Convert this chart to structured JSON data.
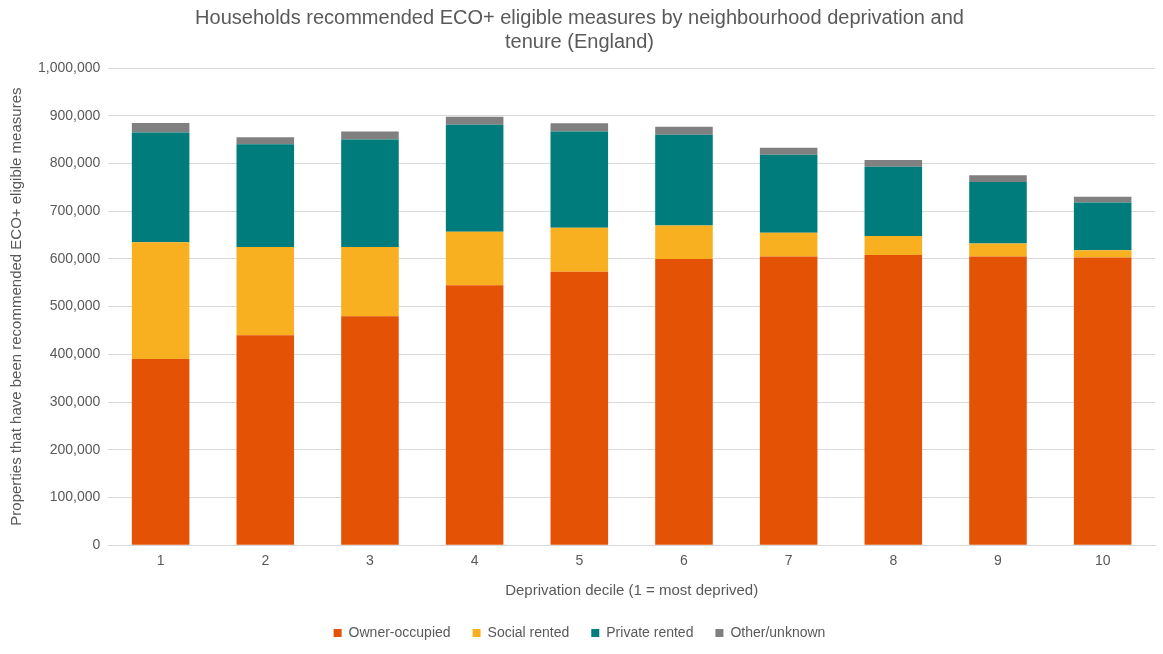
{
  "chart_data": {
    "type": "bar",
    "stacked": true,
    "title": "Households recommended ECO+ eligible measures by neighbourhood deprivation and tenure (England)",
    "xlabel": "Deprivation decile (1 = most deprived)",
    "ylabel": "Properties that have been recommended ECO+ eligible measures",
    "categories": [
      "1",
      "2",
      "3",
      "4",
      "5",
      "6",
      "7",
      "8",
      "9",
      "10"
    ],
    "series": [
      {
        "name": "Owner-occupied",
        "color": "#e35205",
        "values": [
          390000,
          440000,
          480000,
          545000,
          573000,
          600000,
          605000,
          608000,
          605000,
          603000
        ]
      },
      {
        "name": "Social rented",
        "color": "#f8b020",
        "values": [
          245000,
          185000,
          145000,
          112000,
          92000,
          70000,
          50000,
          40000,
          27000,
          15000
        ]
      },
      {
        "name": "Private rented",
        "color": "#007c7c",
        "values": [
          230000,
          215000,
          225000,
          224000,
          202000,
          190000,
          163000,
          145000,
          129000,
          100000
        ]
      },
      {
        "name": "Other/unknown",
        "color": "#808080",
        "values": [
          20000,
          15000,
          17000,
          17000,
          17000,
          17000,
          15000,
          14000,
          14000,
          12000
        ]
      }
    ],
    "ylim": [
      0,
      1000000
    ],
    "yticks": [
      {
        "value": 0,
        "label": "0"
      },
      {
        "value": 100000,
        "label": "100,000"
      },
      {
        "value": 200000,
        "label": "200,000"
      },
      {
        "value": 300000,
        "label": "300,000"
      },
      {
        "value": 400000,
        "label": "400,000"
      },
      {
        "value": 500000,
        "label": "500,000"
      },
      {
        "value": 600000,
        "label": "600,000"
      },
      {
        "value": 700000,
        "label": "700,000"
      },
      {
        "value": 800000,
        "label": "800,000"
      },
      {
        "value": 900000,
        "label": "900,000"
      },
      {
        "value": 1000000,
        "label": "1,000,000"
      }
    ],
    "grid": "y",
    "legend": "bottom"
  }
}
